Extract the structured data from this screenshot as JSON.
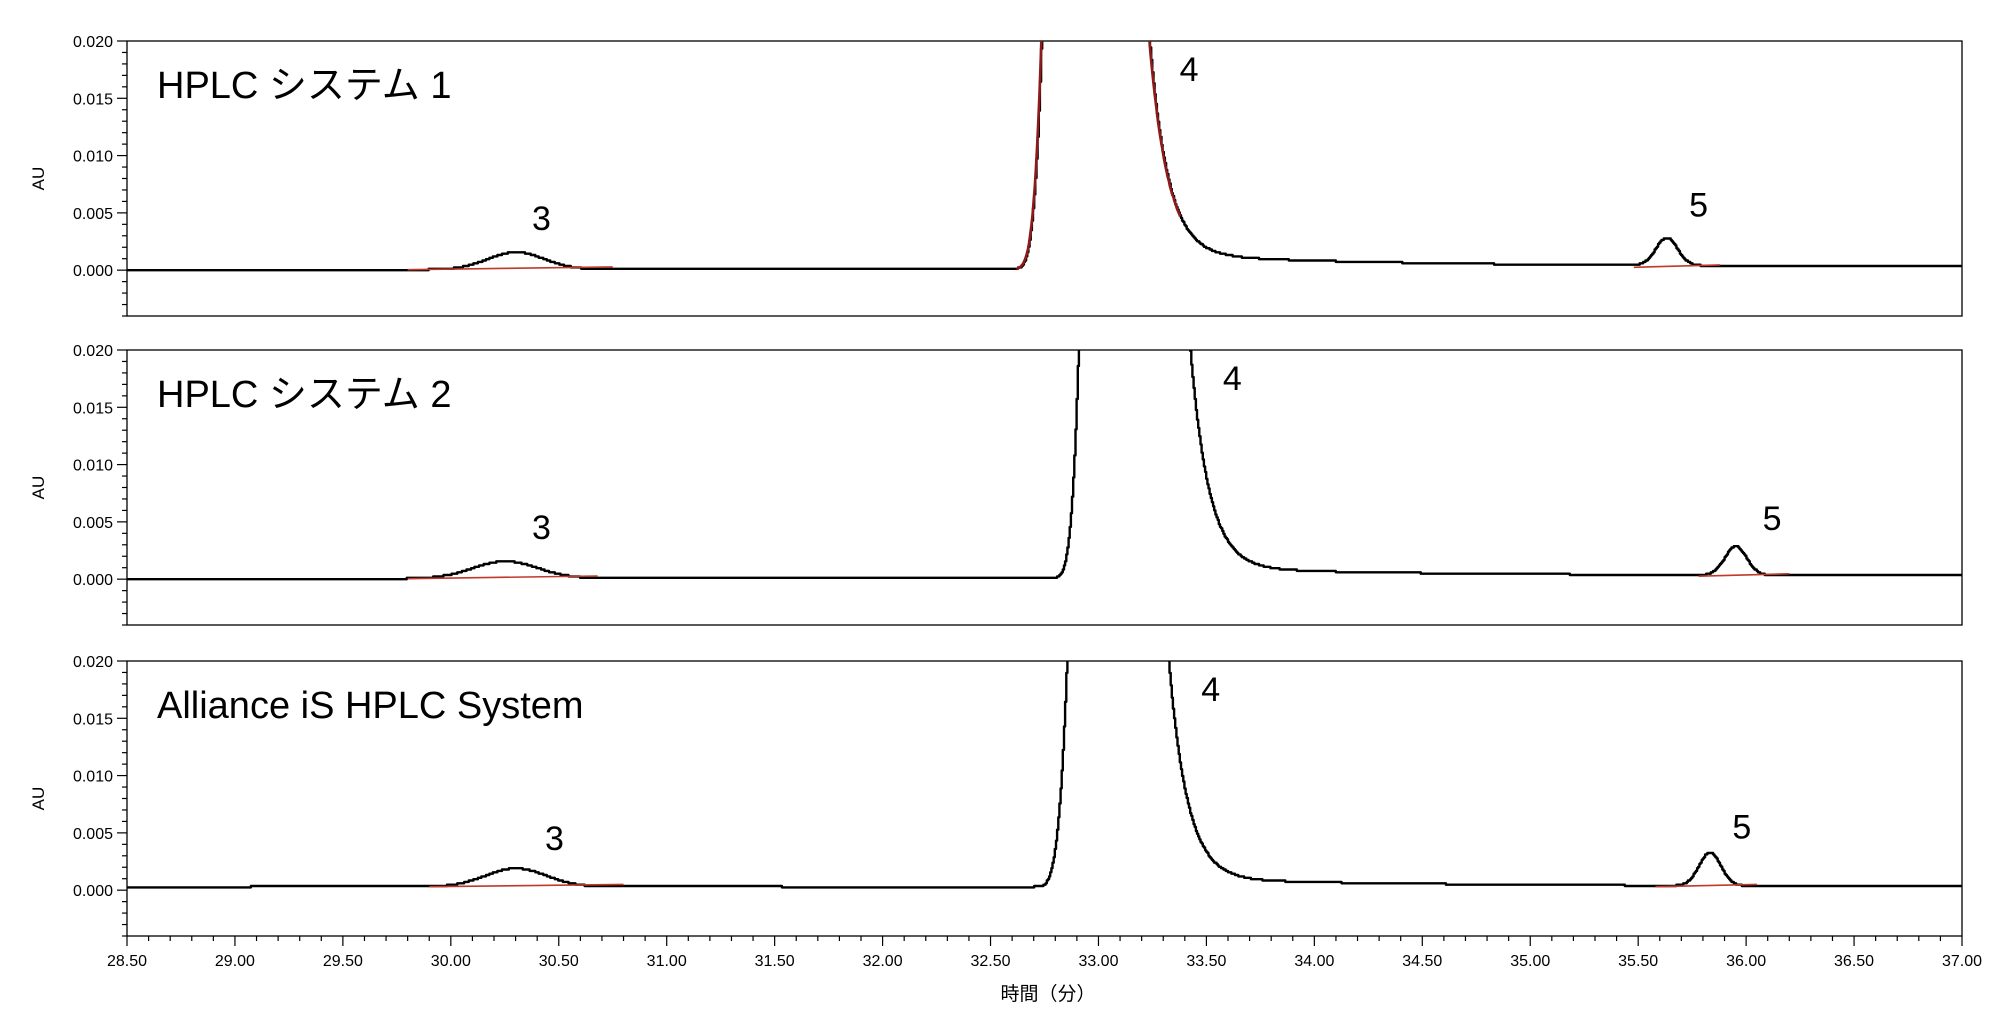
{
  "chart_data": {
    "type": "line",
    "xlabel": "時間（分）",
    "xlim": [
      28.5,
      37.0
    ],
    "xticks": [
      "28.50",
      "29.00",
      "29.50",
      "30.00",
      "30.50",
      "31.00",
      "31.50",
      "32.00",
      "32.50",
      "33.00",
      "33.50",
      "34.00",
      "34.50",
      "35.00",
      "35.50",
      "36.00",
      "36.50",
      "37.00"
    ],
    "ylabel": "AU",
    "ylim": [
      -0.004,
      0.02
    ],
    "yticks": [
      "0.020",
      "0.015",
      "0.010",
      "0.005",
      "0.000"
    ],
    "colors": {
      "trace": "#000000",
      "baseline": "#c0392b",
      "highlight": "#8e1b1b"
    },
    "panels": [
      {
        "title": "HPLC システム 1",
        "baseline_start": 0.0,
        "baseline_end": 0.0003,
        "main_peak": {
          "start": 32.6,
          "rise_top": 32.75,
          "fall_top": 33.23,
          "end": 34.0,
          "tail_level": 0.0012
        },
        "peaks": [
          {
            "label": "3",
            "center": 30.3,
            "height": 0.0015,
            "width": 0.13,
            "int_start": 29.8,
            "int_end": 30.75,
            "label_x": 30.42,
            "label_y": 0.0035
          },
          {
            "label": "5",
            "center": 35.63,
            "height": 0.0024,
            "width": 0.05,
            "int_start": 35.48,
            "int_end": 35.88,
            "label_x": 35.78,
            "label_y": 0.0047
          }
        ],
        "main_label": {
          "text": "4",
          "x": 33.42,
          "y": 0.0165
        },
        "highlight_main": true
      },
      {
        "title": "HPLC システム 2",
        "baseline_start": 0.0,
        "baseline_end": 0.0003,
        "main_peak": {
          "start": 32.78,
          "rise_top": 32.92,
          "fall_top": 33.42,
          "end": 34.2,
          "tail_level": 0.0008
        },
        "peaks": [
          {
            "label": "3",
            "center": 30.25,
            "height": 0.0015,
            "width": 0.15,
            "int_start": 29.8,
            "int_end": 30.68,
            "label_x": 30.42,
            "label_y": 0.0035
          },
          {
            "label": "5",
            "center": 35.95,
            "height": 0.0025,
            "width": 0.05,
            "int_start": 35.78,
            "int_end": 36.2,
            "label_x": 36.12,
            "label_y": 0.0043
          }
        ],
        "main_label": {
          "text": "4",
          "x": 33.62,
          "y": 0.0165
        },
        "highlight_main": false
      },
      {
        "title": "Alliance iS HPLC System",
        "baseline_start": 0.0003,
        "baseline_end": 0.0003,
        "main_peak": {
          "start": 32.7,
          "rise_top": 32.87,
          "fall_top": 33.32,
          "end": 34.0,
          "tail_level": 0.0007
        },
        "peaks": [
          {
            "label": "3",
            "center": 30.3,
            "height": 0.0016,
            "width": 0.14,
            "int_start": 29.9,
            "int_end": 30.8,
            "label_x": 30.48,
            "label_y": 0.0035
          },
          {
            "label": "5",
            "center": 35.83,
            "height": 0.0029,
            "width": 0.05,
            "int_start": 35.58,
            "int_end": 36.05,
            "label_x": 35.98,
            "label_y": 0.0045
          }
        ],
        "main_label": {
          "text": "4",
          "x": 33.52,
          "y": 0.0165
        },
        "highlight_main": false
      }
    ]
  }
}
